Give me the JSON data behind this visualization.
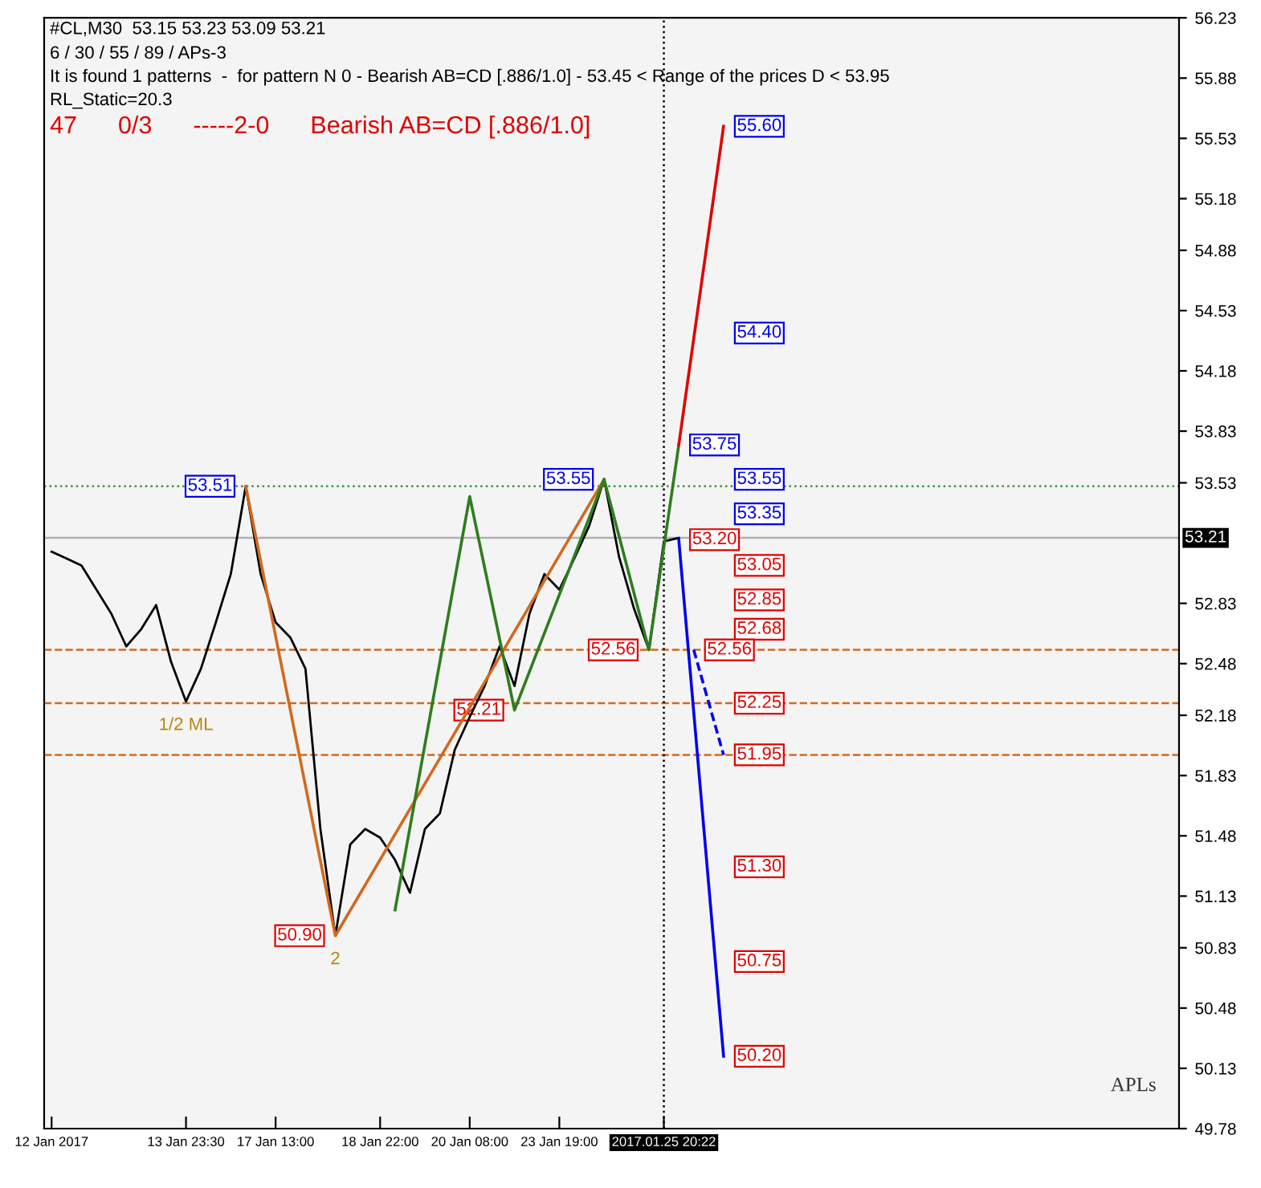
{
  "chart_data": {
    "type": "line",
    "title": "#CL,M30  53.15 53.23 53.09 53.21",
    "annotations": [
      "6 / 30 / 55 / 89 / APs-3",
      "It is found 1 patterns  -  for pattern N 0 - Bearish AB=CD [.886/1.0] - 53.45 < Range of the prices D < 53.95",
      "RL_Static=20.3",
      "47      0/3      -----2-0      Bearish AB=CD [.886/1.0]",
      "APLs",
      {
        "text": "53.51",
        "y": 53.51
      },
      {
        "text": "50.90",
        "y": 50.9
      },
      {
        "text": "52.21",
        "y": 52.21
      },
      {
        "text": "53.55",
        "y": 53.55
      },
      {
        "text": "52.56",
        "y": 52.56
      },
      {
        "text": "1/2 ML",
        "y": 52.26
      },
      {
        "text": "2",
        "y": 50.9
      },
      {
        "text": "55.60",
        "y": 55.6
      },
      {
        "text": "54.40",
        "y": 54.4
      },
      {
        "text": "53.75",
        "y": 53.75
      },
      {
        "text": "53.55",
        "y": 53.55
      },
      {
        "text": "53.35",
        "y": 53.35
      },
      {
        "text": "53.20",
        "y": 53.2
      },
      {
        "text": "53.05",
        "y": 53.05
      },
      {
        "text": "52.85",
        "y": 52.85
      },
      {
        "text": "52.68",
        "y": 52.68
      },
      {
        "text": "52.56",
        "y": 52.56
      },
      {
        "text": "52.25",
        "y": 52.25
      },
      {
        "text": "51.95",
        "y": 51.95
      },
      {
        "text": "51.30",
        "y": 51.3
      },
      {
        "text": "50.75",
        "y": 50.75
      },
      {
        "text": "50.20",
        "y": 50.2
      }
    ],
    "categories": [
      "12 Jan 2017",
      null,
      null,
      null,
      null,
      null,
      null,
      null,
      null,
      "13 Jan 23:30",
      null,
      null,
      null,
      null,
      null,
      "17 Jan 13:00",
      null,
      null,
      null,
      null,
      null,
      null,
      "18 Jan 22:00",
      null,
      null,
      null,
      null,
      null,
      "20 Jan 08:00",
      null,
      null,
      null,
      null,
      null,
      "23 Jan 19:00",
      null,
      null,
      null,
      null,
      null,
      null,
      "2017.01.25 20:22",
      null,
      null,
      null,
      null,
      null,
      null,
      null,
      null,
      null,
      null,
      null,
      null,
      null,
      null,
      null,
      null,
      null,
      null,
      null,
      null,
      null,
      null,
      null,
      null,
      null,
      null,
      null,
      null,
      null,
      null,
      null,
      null,
      null,
      null
    ],
    "ylim": [
      49.78,
      56.23
    ],
    "yticks": [
      49.78,
      50.13,
      50.48,
      50.83,
      51.13,
      51.48,
      51.83,
      52.18,
      52.48,
      52.83,
      53.53,
      53.83,
      54.18,
      54.53,
      54.88,
      55.18,
      55.53,
      55.88,
      56.23
    ],
    "ref_lines": [
      {
        "axis": "y",
        "value": 53.21,
        "label": "53.21",
        "color": "#b0b0b0"
      },
      {
        "axis": "y",
        "value": 53.51,
        "color": "#339933",
        "line_style": "dotted"
      },
      {
        "axis": "y",
        "value": 52.56,
        "color": "#d2691e",
        "line_style": "dashed"
      },
      {
        "axis": "y",
        "value": 52.25,
        "color": "#d2691e",
        "line_style": "dashed"
      },
      {
        "axis": "y",
        "value": 51.95,
        "color": "#d2691e",
        "line_style": "dashed"
      },
      {
        "axis": "x",
        "value": "2017.01.25 20:22",
        "color": "#000000",
        "line_style": "dotted"
      }
    ],
    "grid": false,
    "series": [
      {
        "color": "#000000",
        "values": [
          53.13,
          53.09,
          53.05,
          52.91,
          52.77,
          52.58,
          52.68,
          52.82,
          52.49,
          52.26,
          52.45,
          52.72,
          53.0,
          53.51,
          53.0,
          52.72,
          52.63,
          52.45,
          51.52,
          50.9,
          51.43,
          51.52,
          51.47,
          51.34,
          51.15,
          51.52,
          51.61,
          51.98,
          52.17,
          52.35,
          52.58,
          52.35,
          52.77,
          53.0,
          52.91,
          53.09,
          53.28,
          53.55,
          53.1,
          52.8,
          52.56,
          53.19,
          53.21,
          null,
          null,
          null,
          null,
          null,
          null,
          null,
          null,
          null,
          null,
          null,
          null,
          null,
          null,
          null,
          null,
          null,
          null,
          null,
          null,
          null,
          null,
          null,
          null,
          null,
          null,
          null,
          null,
          null,
          null,
          null,
          null,
          null
        ]
      },
      {
        "color": "#d2691e",
        "values": [
          null,
          null,
          null,
          null,
          null,
          null,
          null,
          null,
          null,
          null,
          null,
          null,
          null,
          53.51,
          null,
          null,
          null,
          null,
          null,
          50.9,
          null,
          null,
          null,
          null,
          null,
          null,
          null,
          null,
          null,
          null,
          null,
          null,
          null,
          null,
          null,
          null,
          null,
          53.55,
          null,
          null,
          null,
          null,
          null,
          null,
          null,
          null,
          null,
          null,
          null,
          null,
          null,
          null,
          null,
          null,
          null,
          null,
          null,
          null,
          null,
          null,
          null,
          null,
          null,
          null,
          null,
          null,
          null,
          null,
          null,
          null,
          null,
          null,
          null,
          null,
          null,
          null
        ]
      },
      {
        "color": "#2e7d1e",
        "values": [
          null,
          null,
          null,
          null,
          null,
          null,
          null,
          null,
          null,
          null,
          null,
          null,
          null,
          null,
          null,
          null,
          null,
          null,
          null,
          null,
          null,
          null,
          null,
          51.05,
          null,
          null,
          null,
          null,
          53.45,
          null,
          null,
          52.21,
          null,
          null,
          null,
          null,
          null,
          53.55,
          null,
          null,
          52.56,
          null,
          53.75,
          null,
          null,
          null,
          null,
          null,
          null,
          null,
          null,
          null,
          null,
          null,
          null,
          null,
          null,
          null,
          null,
          null,
          null,
          null,
          null,
          null,
          null,
          null,
          null,
          null,
          null,
          null,
          null,
          null,
          null,
          null,
          null,
          null
        ]
      },
      {
        "color": "#e00000",
        "values": [
          null,
          null,
          null,
          null,
          null,
          null,
          null,
          null,
          null,
          null,
          null,
          null,
          null,
          null,
          null,
          null,
          null,
          null,
          null,
          null,
          null,
          null,
          null,
          null,
          null,
          null,
          null,
          null,
          null,
          null,
          null,
          null,
          null,
          null,
          null,
          null,
          null,
          null,
          null,
          null,
          null,
          null,
          53.75,
          null,
          null,
          55.6,
          null,
          null,
          null,
          null,
          null,
          null,
          null,
          null,
          null,
          null,
          null,
          null,
          null,
          null,
          null,
          null,
          null,
          null,
          null,
          null,
          null,
          null,
          null,
          null,
          null,
          null,
          null,
          null,
          null,
          null
        ]
      },
      {
        "color": "#0000ee",
        "values": [
          null,
          null,
          null,
          null,
          null,
          null,
          null,
          null,
          null,
          null,
          null,
          null,
          null,
          null,
          null,
          null,
          null,
          null,
          null,
          null,
          null,
          null,
          null,
          null,
          null,
          null,
          null,
          null,
          null,
          null,
          null,
          null,
          null,
          null,
          null,
          null,
          null,
          null,
          null,
          null,
          null,
          null,
          53.2,
          null,
          null,
          50.2,
          null,
          null,
          null,
          null,
          null,
          null,
          null,
          null,
          null,
          null,
          null,
          null,
          null,
          null,
          null,
          null,
          null,
          null,
          null,
          null,
          null,
          null,
          null,
          null,
          null,
          null,
          null,
          null,
          null,
          null
        ]
      },
      {
        "color": "#0000ee",
        "line_style": "dashed",
        "values": [
          null,
          null,
          null,
          null,
          null,
          null,
          null,
          null,
          null,
          null,
          null,
          null,
          null,
          null,
          null,
          null,
          null,
          null,
          null,
          null,
          null,
          null,
          null,
          null,
          null,
          null,
          null,
          null,
          null,
          null,
          null,
          null,
          null,
          null,
          null,
          null,
          null,
          null,
          null,
          null,
          null,
          null,
          null,
          52.56,
          null,
          51.95,
          null,
          null,
          null,
          null,
          null,
          null,
          null,
          null,
          null,
          null,
          null,
          null,
          null,
          null,
          null,
          null,
          null,
          null,
          null,
          null,
          null,
          null,
          null,
          null,
          null,
          null,
          null,
          null,
          null,
          null
        ]
      }
    ]
  }
}
